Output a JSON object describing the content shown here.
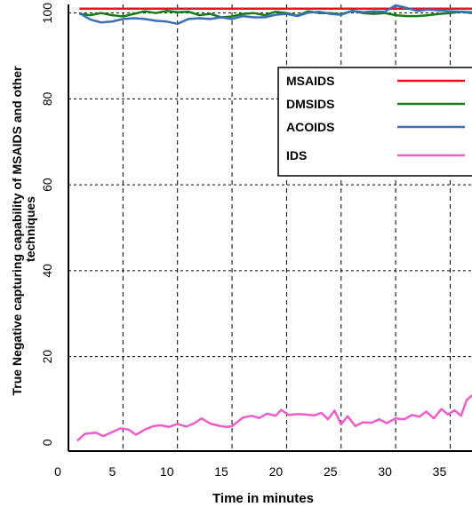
{
  "chart_data": {
    "type": "line",
    "xlabel": "Time in minutes",
    "ylabel_line1": "True Negative capturing capability of MSAIDS and other",
    "ylabel_line2": "techniques",
    "xlim": [
      0,
      37
    ],
    "ylim": [
      -2,
      102
    ],
    "x_ticks": [
      {
        "value": 0,
        "label": "0"
      },
      {
        "value": 5,
        "label": "5"
      },
      {
        "value": 10,
        "label": "10"
      },
      {
        "value": 15,
        "label": "15"
      },
      {
        "value": 20,
        "label": "20"
      },
      {
        "value": 25,
        "label": "25"
      },
      {
        "value": 30,
        "label": "30"
      },
      {
        "value": 35,
        "label": "35"
      }
    ],
    "y_ticks": [
      {
        "value": 0,
        "label": "0"
      },
      {
        "value": 20,
        "label": "20"
      },
      {
        "value": 40,
        "label": "40"
      },
      {
        "value": 60,
        "label": "60"
      },
      {
        "value": 80,
        "label": "80"
      },
      {
        "value": 100,
        "label": "100"
      }
    ],
    "grid": "dashed",
    "legend_position": "top-right",
    "series": [
      {
        "name": "MSAIDS",
        "color": "#e8141b",
        "points": [
          [
            1,
            101
          ],
          [
            3,
            101
          ],
          [
            5,
            101
          ],
          [
            7,
            101
          ],
          [
            9,
            101
          ],
          [
            11,
            101
          ],
          [
            13,
            101
          ],
          [
            15,
            101
          ],
          [
            17,
            101
          ],
          [
            19,
            101
          ],
          [
            21,
            101
          ],
          [
            23,
            101
          ],
          [
            25,
            101
          ],
          [
            27,
            101
          ],
          [
            29,
            101
          ],
          [
            31,
            101
          ],
          [
            33,
            101
          ],
          [
            35,
            101
          ],
          [
            37,
            101
          ]
        ]
      },
      {
        "name": "DMSIDS",
        "color": "#1a7a1a",
        "points": [
          [
            1,
            99.8
          ],
          [
            2,
            99.5
          ],
          [
            3,
            100
          ],
          [
            4,
            99.5
          ],
          [
            5,
            99.2
          ],
          [
            6,
            99.8
          ],
          [
            7,
            100.4
          ],
          [
            8,
            100
          ],
          [
            9,
            100.5
          ],
          [
            10,
            100.2
          ],
          [
            11,
            100.3
          ],
          [
            12,
            99.5
          ],
          [
            13,
            99.8
          ],
          [
            14,
            99
          ],
          [
            15,
            99.2
          ],
          [
            16,
            99.8
          ],
          [
            17,
            100
          ],
          [
            18,
            99.5
          ],
          [
            19,
            100.3
          ],
          [
            20,
            100
          ],
          [
            21,
            99.4
          ],
          [
            22,
            100.4
          ],
          [
            23,
            100
          ],
          [
            24,
            100
          ],
          [
            25,
            99.7
          ],
          [
            26,
            100.5
          ],
          [
            27,
            100
          ],
          [
            28,
            99.8
          ],
          [
            29,
            100
          ],
          [
            30,
            99.5
          ],
          [
            31,
            99.3
          ],
          [
            32,
            99.3
          ],
          [
            33,
            99.5
          ],
          [
            34,
            99.8
          ],
          [
            35,
            100
          ],
          [
            36,
            100.3
          ],
          [
            37,
            100
          ]
        ]
      },
      {
        "name": "ACOIDS",
        "color": "#3a6fb5",
        "points": [
          [
            1,
            100
          ],
          [
            2,
            98.5
          ],
          [
            3,
            97.8
          ],
          [
            4,
            98
          ],
          [
            5,
            98.6
          ],
          [
            6,
            98.8
          ],
          [
            7,
            98.6
          ],
          [
            8,
            98.2
          ],
          [
            9,
            98
          ],
          [
            10,
            97.5
          ],
          [
            11,
            98.6
          ],
          [
            12,
            98.8
          ],
          [
            13,
            98.6
          ],
          [
            14,
            99
          ],
          [
            15,
            98.6
          ],
          [
            16,
            99.3
          ],
          [
            17,
            99
          ],
          [
            18,
            99
          ],
          [
            19,
            99.6
          ],
          [
            20,
            99.8
          ],
          [
            21,
            99.3
          ],
          [
            22,
            100.1
          ],
          [
            23,
            100.3
          ],
          [
            24,
            99.8
          ],
          [
            25,
            99.6
          ],
          [
            26,
            100.5
          ],
          [
            27,
            100.2
          ],
          [
            28,
            100.4
          ],
          [
            29,
            100.3
          ],
          [
            30,
            101.8
          ],
          [
            31,
            101.2
          ],
          [
            32,
            100.5
          ],
          [
            33,
            100.8
          ],
          [
            34,
            100.6
          ],
          [
            35,
            100.4
          ],
          [
            36,
            100.3
          ],
          [
            37,
            100.2
          ]
        ]
      },
      {
        "name": "IDS",
        "color": "#ee5ccb",
        "points": [
          [
            0.8,
            0.4
          ],
          [
            1.5,
            2
          ],
          [
            2.5,
            2.3
          ],
          [
            3.2,
            1.5
          ],
          [
            4,
            2.4
          ],
          [
            4.8,
            3.3
          ],
          [
            5.5,
            3
          ],
          [
            6.2,
            1.8
          ],
          [
            7,
            3
          ],
          [
            7.8,
            3.8
          ],
          [
            8.5,
            4
          ],
          [
            9.2,
            3.6
          ],
          [
            10,
            4.3
          ],
          [
            10.8,
            3.7
          ],
          [
            11.5,
            4.4
          ],
          [
            12.2,
            5.6
          ],
          [
            13,
            4.4
          ],
          [
            13.8,
            3.9
          ],
          [
            14.5,
            3.6
          ],
          [
            15,
            3.8
          ],
          [
            15.4,
            4.6
          ],
          [
            16,
            5.8
          ],
          [
            16.8,
            6.2
          ],
          [
            17.5,
            5.7
          ],
          [
            18.2,
            6.7
          ],
          [
            19,
            6.2
          ],
          [
            19.5,
            7.6
          ],
          [
            20.2,
            6.4
          ],
          [
            21,
            6.6
          ],
          [
            21.8,
            6.5
          ],
          [
            22.5,
            6.3
          ],
          [
            23.2,
            6.9
          ],
          [
            23.8,
            5.4
          ],
          [
            24.4,
            7.4
          ],
          [
            25,
            4.2
          ],
          [
            25.6,
            6.1
          ],
          [
            26.3,
            3.8
          ],
          [
            27,
            4.7
          ],
          [
            27.8,
            4.6
          ],
          [
            28.5,
            5.4
          ],
          [
            29.2,
            4.5
          ],
          [
            30,
            5.6
          ],
          [
            30.8,
            5.4
          ],
          [
            31.5,
            6.4
          ],
          [
            32.2,
            6
          ],
          [
            32.8,
            7.2
          ],
          [
            33.5,
            5.6
          ],
          [
            34.2,
            7.8
          ],
          [
            34.8,
            6.5
          ],
          [
            35.4,
            7.5
          ],
          [
            36,
            6.2
          ],
          [
            36.5,
            9.8
          ],
          [
            37,
            11
          ]
        ]
      }
    ]
  }
}
